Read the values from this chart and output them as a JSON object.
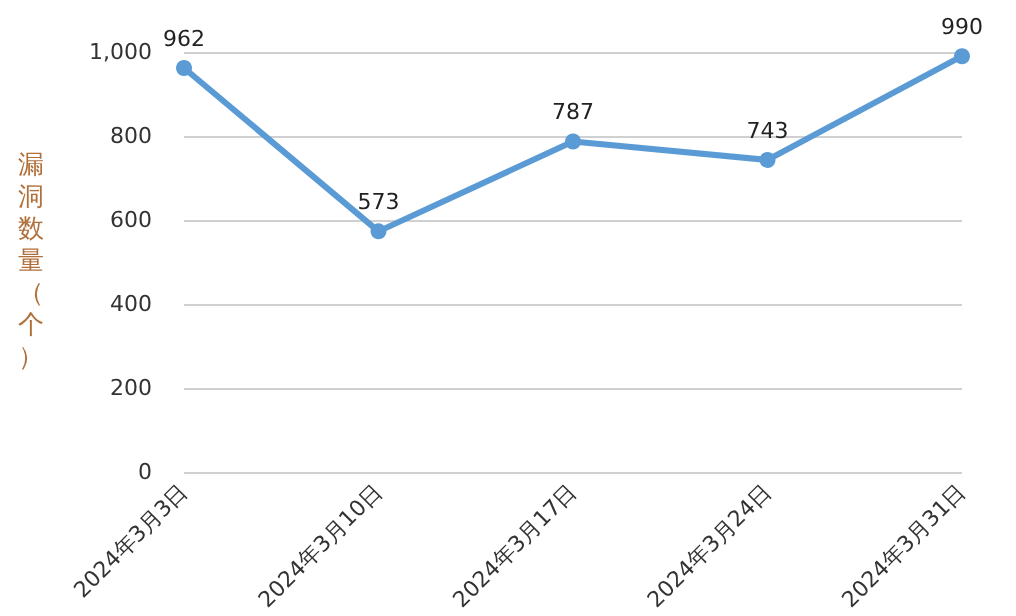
{
  "chart_data": {
    "type": "line",
    "ylabel": "漏洞数量（个）",
    "categories": [
      "2024年3月3日",
      "2024年3月10日",
      "2024年3月17日",
      "2024年3月24日",
      "2024年3月31日"
    ],
    "series": [
      {
        "color": "#5b9bd5",
        "values": [
          962,
          573,
          787,
          743,
          990
        ]
      }
    ],
    "ylim": [
      0,
      1000
    ],
    "yticks": [
      0,
      200,
      400,
      600,
      800,
      {
        "value": 1000,
        "label": "1,000"
      }
    ],
    "grid": "y",
    "marker": "circle",
    "line_style": "solid",
    "data_labels": true
  }
}
